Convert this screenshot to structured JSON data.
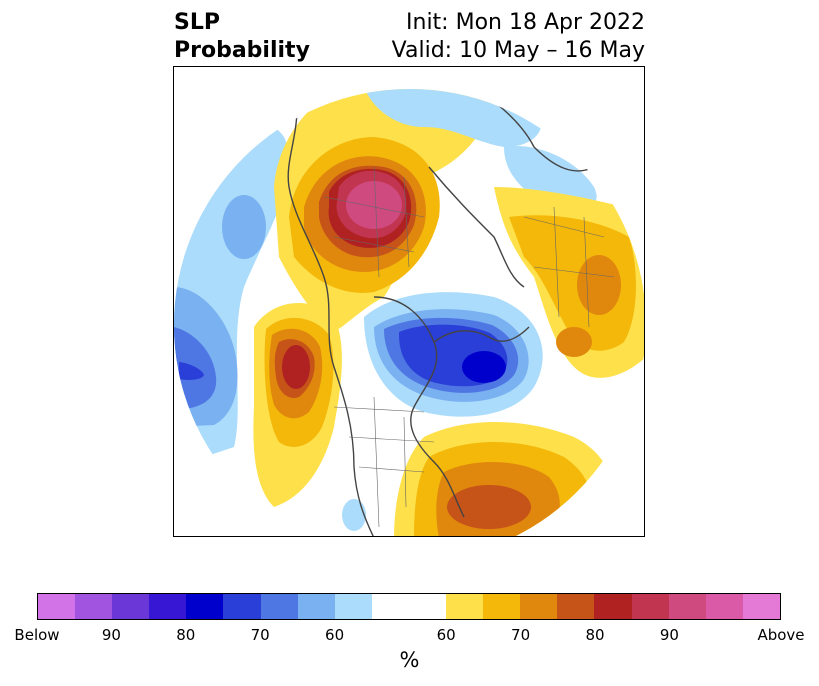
{
  "title": {
    "left_line1": "SLP",
    "left_line2": "Probability",
    "init": "Init: Mon 18 Apr 2022",
    "valid": "Valid: 10 May – 16 May"
  },
  "colorbar": {
    "below_colors": [
      "#d274e8",
      "#a054e0",
      "#6b37d6",
      "#3717d4",
      "#0000cc",
      "#2a3ed8",
      "#4f77e3",
      "#79b1f1",
      "#abdcfb"
    ],
    "neutral_color": "#ffffff",
    "above_colors": [
      "#fee14a",
      "#f4b80a",
      "#e0880e",
      "#c65318",
      "#b02222",
      "#c23550",
      "#cf4a7f",
      "#da5aa8",
      "#e57ad6"
    ],
    "tick_labels": [
      "Below",
      "90",
      "80",
      "70",
      "60",
      "60",
      "70",
      "80",
      "90",
      "Above"
    ],
    "unit_label": "%"
  }
}
